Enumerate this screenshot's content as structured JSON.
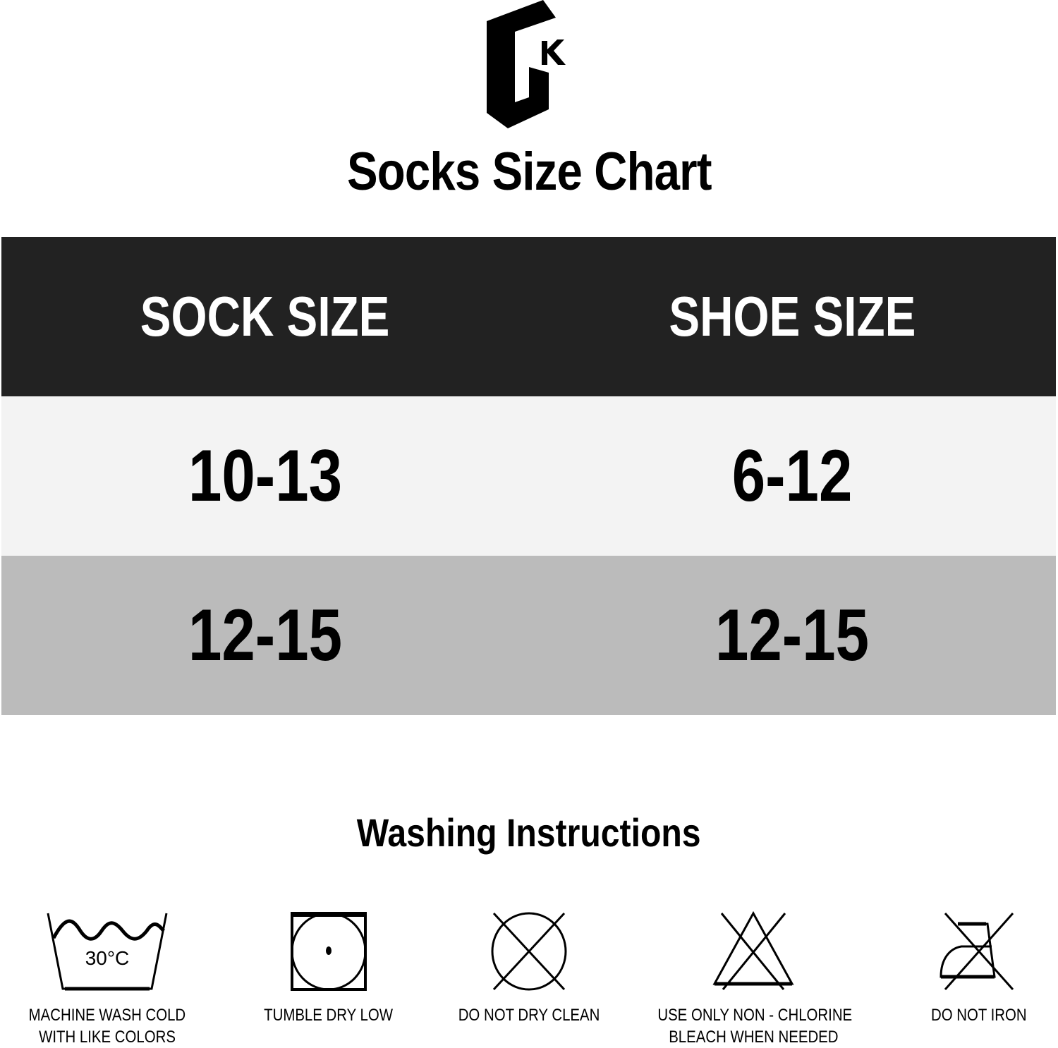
{
  "brand": {
    "logo_letters": "GK"
  },
  "title": "Socks Size Chart",
  "size_table": {
    "headers": [
      "SOCK SIZE",
      "SHOE SIZE"
    ],
    "rows": [
      [
        "10-13",
        "6-12"
      ],
      [
        "12-15",
        "12-15"
      ]
    ],
    "colors": {
      "header_bg": "#222222",
      "row1_bg": "#f3f3f3",
      "row2_bg": "#bbbbbb"
    }
  },
  "washing": {
    "title": "Washing Instructions",
    "items": [
      {
        "icon": "wash-tub-icon",
        "icon_text": "30°C",
        "label_lines": [
          "MACHINE WASH COLD",
          "WITH LIKE COLORS"
        ]
      },
      {
        "icon": "tumble-dry-low-icon",
        "label_lines": [
          "TUMBLE DRY LOW"
        ]
      },
      {
        "icon": "no-dry-clean-icon",
        "label_lines": [
          "DO NOT DRY CLEAN"
        ]
      },
      {
        "icon": "non-chlorine-bleach-icon",
        "label_lines": [
          "USE ONLY NON - CHLORINE",
          "BLEACH WHEN NEEDED"
        ]
      },
      {
        "icon": "no-iron-icon",
        "label_lines": [
          "DO NOT IRON"
        ]
      }
    ]
  }
}
